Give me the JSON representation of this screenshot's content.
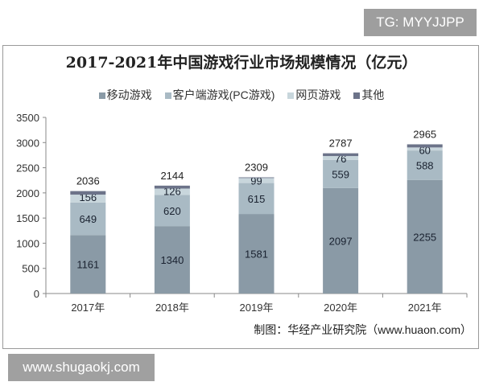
{
  "watermark_top": "TG: MYYJJPP",
  "watermark_bottom": "www.shugaokj.com",
  "source": "制图：华经产业研究院（www.huaon.com）",
  "chart_data": {
    "type": "bar",
    "stacked": true,
    "title": "2017-2021年中国游戏行业市场规模情况（亿元）",
    "xlabel": "",
    "ylabel": "",
    "categories": [
      "2017年",
      "2018年",
      "2019年",
      "2020年",
      "2021年"
    ],
    "ylim": [
      0,
      3500
    ],
    "yticks": [
      0,
      500,
      1000,
      1500,
      2000,
      2500,
      3000,
      3500
    ],
    "legend_position": "top",
    "grid": false,
    "series": [
      {
        "name": "移动游戏",
        "color": "#8a9aa6",
        "values": [
          1161,
          1340,
          1581,
          2097,
          2255
        ]
      },
      {
        "name": "客户端游戏(PC游戏)",
        "color": "#a9bac4",
        "values": [
          649,
          620,
          615,
          559,
          588
        ]
      },
      {
        "name": "网页游戏",
        "color": "#c8d6dc",
        "values": [
          156,
          126,
          99,
          76,
          60
        ]
      },
      {
        "name": "其他",
        "color": "#6c7389",
        "values": [
          70,
          58,
          14,
          55,
          62
        ]
      }
    ],
    "totals": [
      2036,
      2144,
      2309,
      2787,
      2965
    ]
  }
}
